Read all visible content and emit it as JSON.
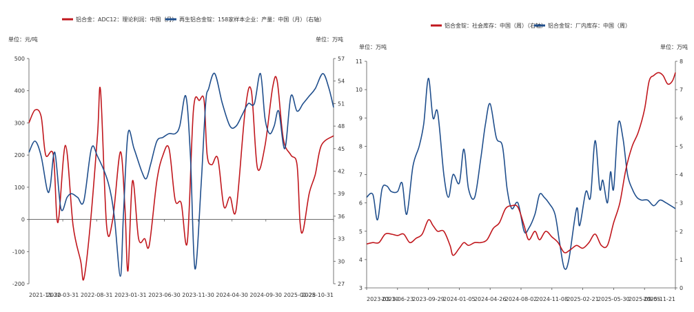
{
  "colors": {
    "red": "#c0161c",
    "blue": "#1f4e8c",
    "axis": "#555555",
    "text": "#333333"
  },
  "chart_data": [
    {
      "type": "line",
      "legend": [
        {
          "name": "铝合金：ADC12：理论利润：中国（月）",
          "color": "#c0161c"
        },
        {
          "name": "再生铝合金锭：158家样本企业：产量：中国（月）（右轴）",
          "color": "#1f4e8c"
        }
      ],
      "left_unit": "单位：元/吨",
      "right_unit": "单位：万吨",
      "left_axis": {
        "min": -200,
        "max": 500,
        "ticks": [
          -200,
          -100,
          0,
          100,
          200,
          300,
          400,
          500
        ]
      },
      "right_axis": {
        "min": 27,
        "max": 57,
        "ticks": [
          27,
          30,
          33,
          36,
          39,
          42,
          45,
          48,
          51,
          54,
          57
        ]
      },
      "x_labels": [
        "2021-11-30",
        "2022-03-31",
        "2022-08-31",
        "2023-01-31",
        "2023-06-30",
        "2023-11-30",
        "2024-04-30",
        "2024-09-30",
        "2025-02-28",
        "2025-10-31"
      ],
      "series": [
        {
          "name": "ADC12理论利润",
          "axis": "left",
          "color": "#c0161c",
          "points": [
            [
              0.0,
              300
            ],
            [
              0.02,
              340
            ],
            [
              0.04,
              320
            ],
            [
              0.055,
              200
            ],
            [
              0.08,
              200
            ],
            [
              0.095,
              -10
            ],
            [
              0.12,
              230
            ],
            [
              0.145,
              -20
            ],
            [
              0.17,
              -130
            ],
            [
              0.18,
              -185
            ],
            [
              0.2,
              -30
            ],
            [
              0.225,
              260
            ],
            [
              0.235,
              400
            ],
            [
              0.255,
              -20
            ],
            [
              0.275,
              0
            ],
            [
              0.3,
              210
            ],
            [
              0.315,
              40
            ],
            [
              0.325,
              -160
            ],
            [
              0.34,
              120
            ],
            [
              0.36,
              -60
            ],
            [
              0.38,
              -60
            ],
            [
              0.395,
              -80
            ],
            [
              0.42,
              120
            ],
            [
              0.44,
              200
            ],
            [
              0.46,
              220
            ],
            [
              0.48,
              60
            ],
            [
              0.5,
              50
            ],
            [
              0.52,
              -70
            ],
            [
              0.54,
              340
            ],
            [
              0.56,
              370
            ],
            [
              0.575,
              370
            ],
            [
              0.585,
              200
            ],
            [
              0.6,
              170
            ],
            [
              0.62,
              190
            ],
            [
              0.64,
              40
            ],
            [
              0.66,
              70
            ],
            [
              0.68,
              30
            ],
            [
              0.71,
              340
            ],
            [
              0.73,
              400
            ],
            [
              0.75,
              160
            ],
            [
              0.775,
              230
            ],
            [
              0.8,
              410
            ],
            [
              0.815,
              430
            ],
            [
              0.835,
              250
            ],
            [
              0.86,
              200
            ],
            [
              0.88,
              170
            ],
            [
              0.89,
              -10
            ],
            [
              0.9,
              -35
            ],
            [
              0.92,
              80
            ],
            [
              0.94,
              140
            ],
            [
              0.96,
              230
            ],
            [
              1.0,
              260
            ]
          ]
        },
        {
          "name": "再生铝合金锭产量",
          "axis": "right",
          "color": "#1f4e8c",
          "points": [
            [
              0.0,
              44.5
            ],
            [
              0.02,
              46
            ],
            [
              0.04,
              44
            ],
            [
              0.06,
              39.5
            ],
            [
              0.07,
              40
            ],
            [
              0.085,
              44.5
            ],
            [
              0.105,
              37
            ],
            [
              0.125,
              38.5
            ],
            [
              0.14,
              39
            ],
            [
              0.16,
              38.5
            ],
            [
              0.18,
              38
            ],
            [
              0.205,
              45
            ],
            [
              0.225,
              44
            ],
            [
              0.26,
              40.5
            ],
            [
              0.28,
              36
            ],
            [
              0.3,
              28
            ],
            [
              0.31,
              36
            ],
            [
              0.325,
              47
            ],
            [
              0.345,
              45
            ],
            [
              0.37,
              42
            ],
            [
              0.385,
              41
            ],
            [
              0.4,
              43
            ],
            [
              0.42,
              46
            ],
            [
              0.44,
              46.5
            ],
            [
              0.46,
              47
            ],
            [
              0.48,
              47
            ],
            [
              0.495,
              48
            ],
            [
              0.515,
              52
            ],
            [
              0.53,
              44
            ],
            [
              0.545,
              29
            ],
            [
              0.565,
              40
            ],
            [
              0.58,
              51
            ],
            [
              0.59,
              53
            ],
            [
              0.61,
              55
            ],
            [
              0.635,
              51
            ],
            [
              0.66,
              48
            ],
            [
              0.68,
              48
            ],
            [
              0.7,
              49.5
            ],
            [
              0.72,
              51
            ],
            [
              0.74,
              51
            ],
            [
              0.76,
              55
            ],
            [
              0.775,
              49
            ],
            [
              0.79,
              47
            ],
            [
              0.805,
              48
            ],
            [
              0.82,
              50
            ],
            [
              0.84,
              45
            ],
            [
              0.86,
              52
            ],
            [
              0.88,
              50
            ],
            [
              0.9,
              51
            ],
            [
              0.92,
              52
            ],
            [
              0.94,
              53
            ],
            [
              0.965,
              55
            ],
            [
              0.985,
              53
            ],
            [
              1.0,
              50.5
            ]
          ]
        }
      ]
    },
    {
      "type": "line",
      "legend": [
        {
          "name": "铝合金锭：社会库存：中国（周）（右轴）",
          "color": "#c0161c"
        },
        {
          "name": "铝合金锭：厂内库存：中国（周）",
          "color": "#1f4e8c"
        }
      ],
      "left_unit": "单位：万吨",
      "right_unit": "单位：万吨",
      "left_axis": {
        "min": 3,
        "max": 11,
        "ticks": [
          3,
          4,
          5,
          6,
          7,
          8,
          9,
          10,
          11
        ]
      },
      "right_axis": {
        "min": 0,
        "max": 8,
        "ticks": [
          0,
          1,
          2,
          3,
          4,
          5,
          6,
          7,
          8
        ]
      },
      "x_labels": [
        "2023-03-10",
        "2023-06-23",
        "2023-09-29",
        "2024-01-05",
        "2024-04-26",
        "2024-08-02",
        "2024-11-08",
        "2025-02-21",
        "2025-05-30",
        "2025-09-05",
        "2025-11-21"
      ],
      "series": [
        {
          "name": "厂内库存",
          "axis": "left",
          "color": "#1f4e8c",
          "points": [
            [
              0.0,
              6.2
            ],
            [
              0.02,
              6.3
            ],
            [
              0.035,
              5.4
            ],
            [
              0.05,
              6.5
            ],
            [
              0.065,
              6.6
            ],
            [
              0.08,
              6.4
            ],
            [
              0.1,
              6.4
            ],
            [
              0.115,
              6.7
            ],
            [
              0.13,
              5.6
            ],
            [
              0.15,
              7.3
            ],
            [
              0.17,
              8.0
            ],
            [
              0.185,
              8.8
            ],
            [
              0.2,
              10.4
            ],
            [
              0.215,
              9.0
            ],
            [
              0.23,
              9.2
            ],
            [
              0.25,
              7.0
            ],
            [
              0.265,
              6.2
            ],
            [
              0.28,
              7.0
            ],
            [
              0.3,
              6.7
            ],
            [
              0.315,
              7.9
            ],
            [
              0.33,
              6.5
            ],
            [
              0.35,
              6.2
            ],
            [
              0.37,
              7.6
            ],
            [
              0.385,
              8.8
            ],
            [
              0.4,
              9.5
            ],
            [
              0.42,
              8.3
            ],
            [
              0.44,
              8.0
            ],
            [
              0.455,
              6.5
            ],
            [
              0.47,
              5.8
            ],
            [
              0.49,
              6.0
            ],
            [
              0.51,
              5.0
            ],
            [
              0.525,
              5.1
            ],
            [
              0.545,
              5.6
            ],
            [
              0.56,
              6.3
            ],
            [
              0.575,
              6.2
            ],
            [
              0.59,
              6.0
            ],
            [
              0.61,
              5.6
            ],
            [
              0.625,
              4.6
            ],
            [
              0.64,
              3.7
            ],
            [
              0.655,
              4.0
            ],
            [
              0.68,
              5.8
            ],
            [
              0.69,
              5.2
            ],
            [
              0.71,
              6.4
            ],
            [
              0.725,
              6.2
            ],
            [
              0.74,
              8.2
            ],
            [
              0.755,
              6.5
            ],
            [
              0.765,
              6.8
            ],
            [
              0.78,
              6.0
            ],
            [
              0.79,
              7.1
            ],
            [
              0.8,
              6.5
            ],
            [
              0.815,
              8.8
            ],
            [
              0.83,
              8.3
            ],
            [
              0.845,
              7.0
            ],
            [
              0.86,
              6.5
            ],
            [
              0.875,
              6.2
            ],
            [
              0.89,
              6.1
            ],
            [
              0.91,
              6.1
            ],
            [
              0.93,
              5.9
            ],
            [
              0.95,
              6.1
            ],
            [
              0.97,
              6.0
            ],
            [
              1.0,
              5.8
            ]
          ]
        },
        {
          "name": "社会库存",
          "axis": "right",
          "color": "#c0161c",
          "points": [
            [
              0.0,
              1.55
            ],
            [
              0.02,
              1.6
            ],
            [
              0.04,
              1.6
            ],
            [
              0.06,
              1.9
            ],
            [
              0.08,
              1.9
            ],
            [
              0.1,
              1.85
            ],
            [
              0.12,
              1.9
            ],
            [
              0.14,
              1.6
            ],
            [
              0.16,
              1.75
            ],
            [
              0.18,
              1.9
            ],
            [
              0.2,
              2.4
            ],
            [
              0.215,
              2.2
            ],
            [
              0.23,
              2.0
            ],
            [
              0.25,
              2.0
            ],
            [
              0.27,
              1.5
            ],
            [
              0.28,
              1.15
            ],
            [
              0.3,
              1.4
            ],
            [
              0.315,
              1.6
            ],
            [
              0.33,
              1.5
            ],
            [
              0.35,
              1.6
            ],
            [
              0.37,
              1.6
            ],
            [
              0.39,
              1.7
            ],
            [
              0.41,
              2.1
            ],
            [
              0.43,
              2.3
            ],
            [
              0.45,
              2.8
            ],
            [
              0.47,
              2.9
            ],
            [
              0.49,
              2.85
            ],
            [
              0.51,
              2.2
            ],
            [
              0.525,
              1.7
            ],
            [
              0.545,
              2.0
            ],
            [
              0.56,
              1.7
            ],
            [
              0.58,
              2.0
            ],
            [
              0.6,
              1.8
            ],
            [
              0.62,
              1.6
            ],
            [
              0.64,
              1.25
            ],
            [
              0.66,
              1.35
            ],
            [
              0.68,
              1.5
            ],
            [
              0.7,
              1.4
            ],
            [
              0.72,
              1.6
            ],
            [
              0.74,
              1.9
            ],
            [
              0.76,
              1.5
            ],
            [
              0.78,
              1.5
            ],
            [
              0.8,
              2.3
            ],
            [
              0.82,
              3.0
            ],
            [
              0.84,
              4.2
            ],
            [
              0.86,
              5.0
            ],
            [
              0.88,
              5.5
            ],
            [
              0.9,
              6.3
            ],
            [
              0.915,
              7.3
            ],
            [
              0.93,
              7.5
            ],
            [
              0.945,
              7.6
            ],
            [
              0.96,
              7.5
            ],
            [
              0.975,
              7.2
            ],
            [
              0.99,
              7.3
            ],
            [
              1.0,
              7.6
            ]
          ]
        }
      ]
    }
  ]
}
